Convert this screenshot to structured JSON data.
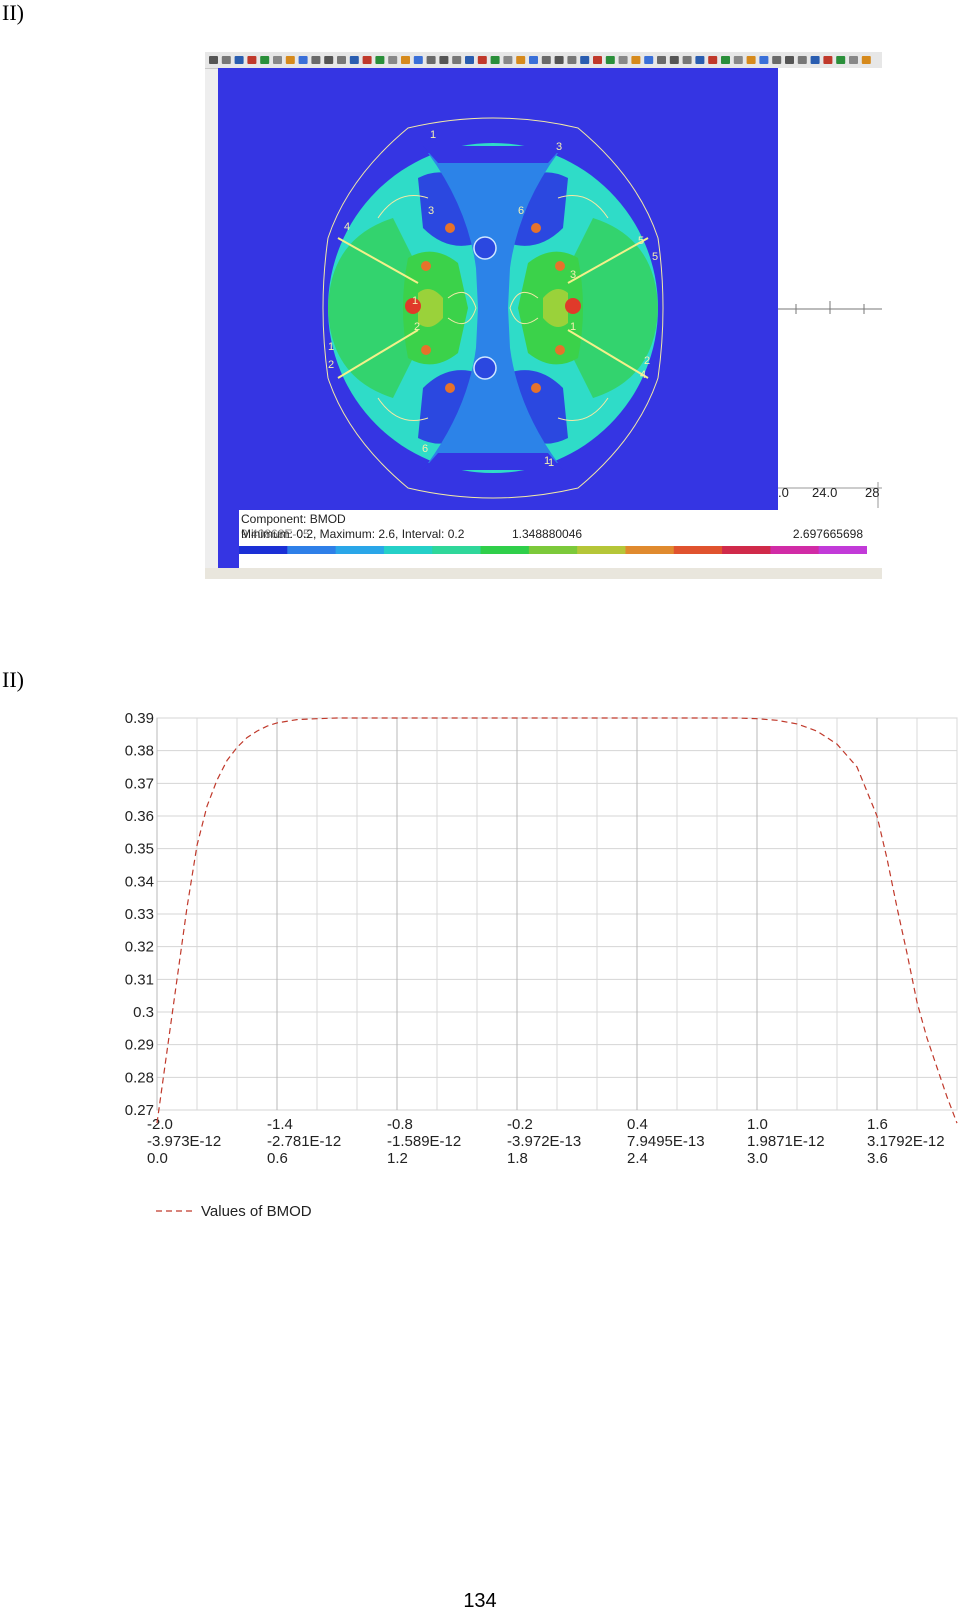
{
  "labels": {
    "top": "II)",
    "bottom": "II)"
  },
  "figure1": {
    "y_axis_letter": "Y",
    "node_numbers": [
      "1",
      "3",
      "4",
      "5",
      "1",
      "2",
      "3",
      "6",
      "1",
      "3",
      "2",
      "1",
      "5",
      "2",
      "1",
      "6",
      "1",
      "4"
    ],
    "ruler_ticks": [
      ".0",
      "24.0",
      "28"
    ],
    "legend": {
      "component": "Component: BMOD",
      "minimum_overlap": "9.40868E-05",
      "scale_text": "Minimum: 0.2, Maximum: 2.6, Interval: 0.2",
      "mid_value": "1.348880046",
      "max_value": "2.697665698",
      "colors": [
        "#1b2fd6",
        "#2e7fe8",
        "#2aa6e8",
        "#25d0c8",
        "#2fd79a",
        "#2fcf4a",
        "#7cc93a",
        "#b5c638",
        "#e08a2e",
        "#e0532e",
        "#d02a4a",
        "#d12ba6",
        "#c23ad8"
      ]
    },
    "contour_colors": {
      "background": "#3535e3",
      "dark_blue": "#2b48e0",
      "mid_blue": "#2c83e8",
      "cyan": "#2fdcc8",
      "green": "#33d36e",
      "bright_green": "#3bd24a",
      "yellow_green": "#9ad23a",
      "orange": "#e6722b",
      "red": "#e03a2a"
    }
  },
  "chart_data": {
    "type": "line",
    "title": "",
    "xlabel": "",
    "ylabel": "",
    "ylim": [
      0.27,
      0.39
    ],
    "y_ticks": [
      "0.39",
      "0.38",
      "0.37",
      "0.36",
      "0.35",
      "0.34",
      "0.33",
      "0.32",
      "0.31",
      "0.3",
      "0.29",
      "0.28",
      "0.27"
    ],
    "x_tick_rows": [
      [
        "-2.0",
        "-1.4",
        "-0.8",
        "-0.2",
        "0.4",
        "1.0",
        "1.6"
      ],
      [
        "-3.973E-12",
        "-2.781E-12",
        "-1.589E-12",
        "-3.972E-13",
        "7.9495E-13",
        "1.9871E-12",
        "3.1792E-12"
      ],
      [
        "0.0",
        "0.6",
        "1.2",
        "1.8",
        "2.4",
        "3.0",
        "3.6"
      ]
    ],
    "x_range": [
      -2.0,
      2.0
    ],
    "grid": true,
    "legend_position": "bottom-left",
    "series": [
      {
        "name": "Values of BMOD",
        "color": "#c0392b",
        "style": "dashed",
        "x": [
          -2.0,
          -1.95,
          -1.9,
          -1.85,
          -1.8,
          -1.75,
          -1.7,
          -1.65,
          -1.6,
          -1.55,
          -1.5,
          -1.45,
          -1.4,
          -1.3,
          -1.2,
          -1.1,
          -1.0,
          -0.8,
          -0.6,
          -0.4,
          -0.2,
          0.0,
          0.2,
          0.4,
          0.6,
          0.8,
          0.9,
          1.0,
          1.1,
          1.2,
          1.3,
          1.4,
          1.5,
          1.6,
          1.65,
          1.7,
          1.75,
          1.8,
          1.85,
          1.9,
          1.95,
          2.0
        ],
        "y": [
          0.266,
          0.288,
          0.31,
          0.332,
          0.351,
          0.363,
          0.371,
          0.377,
          0.381,
          0.384,
          0.386,
          0.3875,
          0.3885,
          0.3895,
          0.3898,
          0.39,
          0.39,
          0.39,
          0.39,
          0.39,
          0.39,
          0.39,
          0.39,
          0.39,
          0.39,
          0.39,
          0.39,
          0.3898,
          0.3893,
          0.3882,
          0.386,
          0.382,
          0.375,
          0.36,
          0.347,
          0.332,
          0.318,
          0.303,
          0.292,
          0.283,
          0.274,
          0.266
        ]
      }
    ]
  },
  "page_number": "134"
}
